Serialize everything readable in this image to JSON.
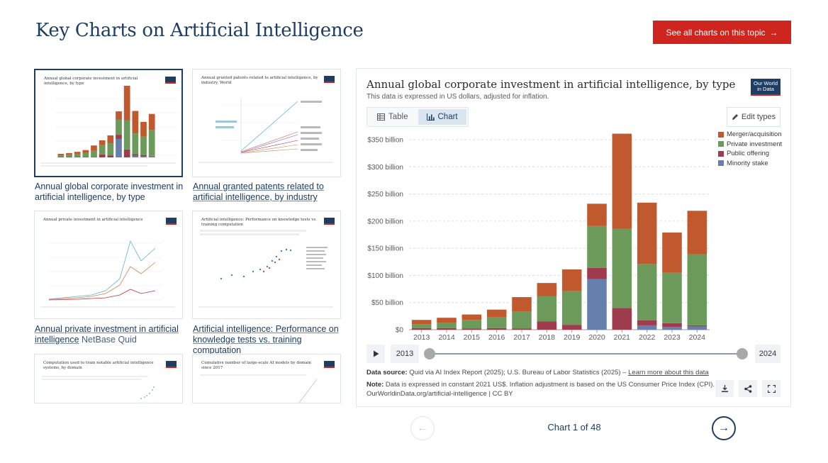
{
  "page": {
    "title": "Key Charts on Artificial Intelligence",
    "see_all_label": "See all charts on this topic",
    "see_all_arrow": "→"
  },
  "thumbnails": [
    {
      "caption": "Annual global corporate investment in artificial intelligence, by type",
      "mini_title": "Annual global corporate investment in artificial intelligence, by type",
      "active": true
    },
    {
      "caption": "Annual granted patents related to artificial intelligence, by industry",
      "mini_title": "Annual granted patents related to artificial intelligence, by industry, World"
    },
    {
      "caption": "Annual private investment in artificial intelligence",
      "caption_extra": "NetBase Quid",
      "mini_title": "Annual private investment in artificial intelligence"
    },
    {
      "caption": "Artificial intelligence: Performance on knowledge tests vs. training computation",
      "mini_title": "Artificial intelligence: Performance on knowledge tests vs. training computation"
    },
    {
      "caption": "",
      "mini_title": "Computation used to train notable artificial intelligence systems, by domain"
    },
    {
      "caption": "",
      "mini_title": "Cumulative number of large-scale AI models by domain since 2017"
    }
  ],
  "chart_card": {
    "title": "Annual global corporate investment in artificial intelligence, by type",
    "subtitle": "This data is expressed in US dollars, adjusted for inflation.",
    "logo_line1": "Our World",
    "logo_line2": "in Data",
    "tab_table": "Table",
    "tab_chart": "Chart",
    "edit_types": "Edit types",
    "timeline_start": "2013",
    "timeline_end": "2024",
    "source_label": "Data source:",
    "source_text": "Quid via AI Index Report (2025); U.S. Bureau of Labor Statistics (2025) –",
    "source_link": "Learn more about this data",
    "note_label": "Note:",
    "note_text": "Data is expressed in constant 2021 US$. Inflation adjustment is based on the US Consumer Price Index (CPI).",
    "url_text": "OurWorldinData.org/artificial-intelligence | CC BY"
  },
  "icons": {
    "table": "table-icon",
    "chart": "bar-chart-icon",
    "edit": "pencil-icon",
    "play": "play-icon",
    "download": "download-icon",
    "share": "share-icon",
    "fullscreen": "fullscreen-icon"
  },
  "colors": {
    "merger": "#c05a2e",
    "private": "#6b9a5b",
    "public": "#9e3b4c",
    "minority": "#6680ad",
    "brand_red": "#ce261e",
    "brand_navy": "#1d3d63"
  },
  "pager": {
    "label": "Chart 1 of 48",
    "prev": "←",
    "next": "→"
  },
  "chart_data": {
    "type": "bar",
    "stacked": true,
    "title": "Annual global corporate investment in artificial intelligence, by type",
    "ylabel": "",
    "ylim": [
      0,
      350
    ],
    "yticks": [
      0,
      50,
      100,
      150,
      200,
      250,
      300,
      350
    ],
    "ytick_labels": [
      "$0",
      "$50 billion",
      "$100 billion",
      "$150 billion",
      "$200 billion",
      "$250 billion",
      "$300 billion",
      "$350 billion"
    ],
    "categories": [
      "2013",
      "2014",
      "2015",
      "2016",
      "2017",
      "2018",
      "2019",
      "2020",
      "2021",
      "2022",
      "2023",
      "2024"
    ],
    "legend_position": "top-right",
    "series": [
      {
        "name": "Minority stake",
        "color": "#6680ad",
        "values": [
          0,
          0,
          0,
          0,
          0,
          0,
          0,
          93,
          0,
          8,
          5,
          6
        ]
      },
      {
        "name": "Public offering",
        "color": "#9e3b4c",
        "values": [
          3,
          3,
          2,
          3,
          2,
          15,
          9,
          21,
          40,
          9,
          7,
          2
        ]
      },
      {
        "name": "Private investment",
        "color": "#6b9a5b",
        "values": [
          7,
          10,
          16,
          20,
          31,
          47,
          62,
          77,
          146,
          104,
          93,
          131
        ]
      },
      {
        "name": "Merger/acquisition",
        "color": "#c05a2e",
        "values": [
          8,
          9,
          10,
          14,
          27,
          24,
          40,
          41,
          175,
          113,
          74,
          80
        ]
      }
    ]
  }
}
